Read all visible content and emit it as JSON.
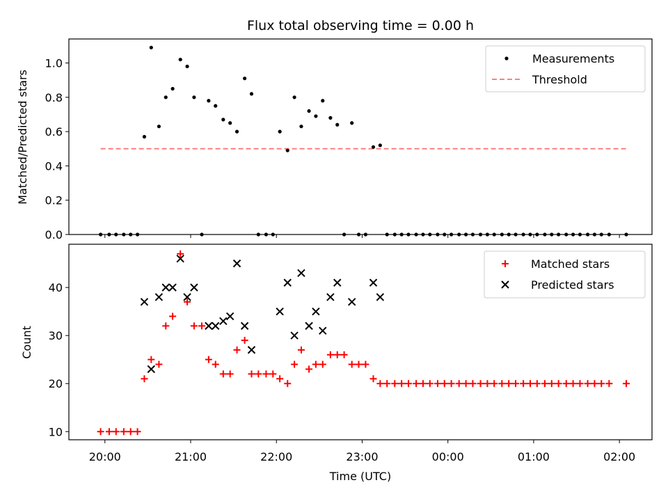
{
  "chart_data": [
    {
      "type": "scatter",
      "title": "Flux total observing time = 0.00 h",
      "xlabel": "",
      "ylabel": "Matched/Predicted stars",
      "ylim": [
        0,
        1.14
      ],
      "yticks": [
        0.0,
        0.2,
        0.4,
        0.6,
        0.8,
        1.0
      ],
      "ytick_labels": [
        "0.0",
        "0.2",
        "0.4",
        "0.6",
        "0.8",
        "1.0"
      ],
      "legend_position": "top-right",
      "series": [
        {
          "name": "Measurements",
          "marker": "dot",
          "color": "#000000",
          "points": [
            [
              19.95,
              0
            ],
            [
              20.05,
              0
            ],
            [
              20.13,
              0
            ],
            [
              20.22,
              0
            ],
            [
              20.3,
              0
            ],
            [
              20.38,
              0
            ],
            [
              20.46,
              0.57
            ],
            [
              20.54,
              1.09
            ],
            [
              20.63,
              0.63
            ],
            [
              20.71,
              0.8
            ],
            [
              20.79,
              0.85
            ],
            [
              20.88,
              1.02
            ],
            [
              20.96,
              0.98
            ],
            [
              21.04,
              0.8
            ],
            [
              21.13,
              0
            ],
            [
              21.21,
              0.78
            ],
            [
              21.29,
              0.75
            ],
            [
              21.38,
              0.67
            ],
            [
              21.46,
              0.65
            ],
            [
              21.54,
              0.6
            ],
            [
              21.63,
              0.91
            ],
            [
              21.71,
              0.82
            ],
            [
              21.79,
              0
            ],
            [
              21.88,
              0
            ],
            [
              21.96,
              0
            ],
            [
              22.04,
              0.6
            ],
            [
              22.13,
              0.49
            ],
            [
              22.21,
              0.8
            ],
            [
              22.29,
              0.63
            ],
            [
              22.38,
              0.72
            ],
            [
              22.46,
              0.69
            ],
            [
              22.54,
              0.78
            ],
            [
              22.63,
              0.68
            ],
            [
              22.71,
              0.64
            ],
            [
              22.79,
              0
            ],
            [
              22.88,
              0.65
            ],
            [
              22.96,
              0
            ],
            [
              23.04,
              0
            ],
            [
              23.13,
              0.51
            ],
            [
              23.21,
              0.52
            ],
            [
              23.29,
              0
            ],
            [
              23.38,
              0
            ],
            [
              23.46,
              0
            ],
            [
              23.54,
              0
            ],
            [
              23.63,
              0
            ],
            [
              23.71,
              0
            ],
            [
              23.79,
              0
            ],
            [
              23.88,
              0
            ],
            [
              23.96,
              0
            ],
            [
              24.04,
              0
            ],
            [
              24.13,
              0
            ],
            [
              24.21,
              0
            ],
            [
              24.29,
              0
            ],
            [
              24.38,
              0
            ],
            [
              24.46,
              0
            ],
            [
              24.54,
              0
            ],
            [
              24.63,
              0
            ],
            [
              24.71,
              0
            ],
            [
              24.79,
              0
            ],
            [
              24.88,
              0
            ],
            [
              24.96,
              0
            ],
            [
              25.04,
              0
            ],
            [
              25.13,
              0
            ],
            [
              25.21,
              0
            ],
            [
              25.29,
              0
            ],
            [
              25.38,
              0
            ],
            [
              25.46,
              0
            ],
            [
              25.54,
              0
            ],
            [
              25.63,
              0
            ],
            [
              25.71,
              0
            ],
            [
              25.79,
              0
            ],
            [
              25.88,
              0
            ],
            [
              26.08,
              0
            ]
          ]
        },
        {
          "name": "Threshold",
          "line": "dashed",
          "color": "#ff7f7f",
          "points": [
            [
              19.95,
              0.5
            ],
            [
              26.08,
              0.5
            ]
          ]
        }
      ]
    },
    {
      "type": "scatter",
      "title": "",
      "xlabel": "Time (UTC)",
      "ylabel": "Count",
      "ylim": [
        8.3,
        49
      ],
      "yticks": [
        10,
        20,
        30,
        40
      ],
      "ytick_labels": [
        "10",
        "20",
        "30",
        "40"
      ],
      "xlim": [
        19.58,
        26.38
      ],
      "xticks": [
        20,
        21,
        22,
        23,
        24,
        25,
        26
      ],
      "xtick_labels": [
        "20:00",
        "21:00",
        "22:00",
        "23:00",
        "00:00",
        "01:00",
        "02:00"
      ],
      "legend_position": "top-right",
      "series": [
        {
          "name": "Matched stars",
          "marker": "plus",
          "color": "#ff0000",
          "points": [
            [
              19.95,
              10
            ],
            [
              20.05,
              10
            ],
            [
              20.13,
              10
            ],
            [
              20.22,
              10
            ],
            [
              20.3,
              10
            ],
            [
              20.38,
              10
            ],
            [
              20.46,
              21
            ],
            [
              20.54,
              25
            ],
            [
              20.63,
              24
            ],
            [
              20.71,
              32
            ],
            [
              20.79,
              34
            ],
            [
              20.88,
              47
            ],
            [
              20.96,
              37
            ],
            [
              21.04,
              32
            ],
            [
              21.13,
              32
            ],
            [
              21.21,
              25
            ],
            [
              21.29,
              24
            ],
            [
              21.38,
              22
            ],
            [
              21.46,
              22
            ],
            [
              21.54,
              27
            ],
            [
              21.63,
              29
            ],
            [
              21.71,
              22
            ],
            [
              21.79,
              22
            ],
            [
              21.88,
              22
            ],
            [
              21.96,
              22
            ],
            [
              22.04,
              21
            ],
            [
              22.13,
              20
            ],
            [
              22.21,
              24
            ],
            [
              22.29,
              27
            ],
            [
              22.38,
              23
            ],
            [
              22.46,
              24
            ],
            [
              22.54,
              24
            ],
            [
              22.63,
              26
            ],
            [
              22.71,
              26
            ],
            [
              22.79,
              26
            ],
            [
              22.88,
              24
            ],
            [
              22.96,
              24
            ],
            [
              23.04,
              24
            ],
            [
              23.13,
              21
            ],
            [
              23.21,
              20
            ],
            [
              23.29,
              20
            ],
            [
              23.38,
              20
            ],
            [
              23.46,
              20
            ],
            [
              23.54,
              20
            ],
            [
              23.63,
              20
            ],
            [
              23.71,
              20
            ],
            [
              23.79,
              20
            ],
            [
              23.88,
              20
            ],
            [
              23.96,
              20
            ],
            [
              24.04,
              20
            ],
            [
              24.13,
              20
            ],
            [
              24.21,
              20
            ],
            [
              24.29,
              20
            ],
            [
              24.38,
              20
            ],
            [
              24.46,
              20
            ],
            [
              24.54,
              20
            ],
            [
              24.63,
              20
            ],
            [
              24.71,
              20
            ],
            [
              24.79,
              20
            ],
            [
              24.88,
              20
            ],
            [
              24.96,
              20
            ],
            [
              25.04,
              20
            ],
            [
              25.13,
              20
            ],
            [
              25.21,
              20
            ],
            [
              25.29,
              20
            ],
            [
              25.38,
              20
            ],
            [
              25.46,
              20
            ],
            [
              25.54,
              20
            ],
            [
              25.63,
              20
            ],
            [
              25.71,
              20
            ],
            [
              25.79,
              20
            ],
            [
              25.88,
              20
            ],
            [
              26.08,
              20
            ]
          ]
        },
        {
          "name": "Predicted stars",
          "marker": "x",
          "color": "#000000",
          "points": [
            [
              20.46,
              37
            ],
            [
              20.54,
              23
            ],
            [
              20.63,
              38
            ],
            [
              20.71,
              40
            ],
            [
              20.79,
              40
            ],
            [
              20.88,
              46
            ],
            [
              20.96,
              38
            ],
            [
              21.04,
              40
            ],
            [
              21.21,
              32
            ],
            [
              21.29,
              32
            ],
            [
              21.38,
              33
            ],
            [
              21.46,
              34
            ],
            [
              21.54,
              45
            ],
            [
              21.63,
              32
            ],
            [
              21.71,
              27
            ],
            [
              22.04,
              35
            ],
            [
              22.13,
              41
            ],
            [
              22.21,
              30
            ],
            [
              22.29,
              43
            ],
            [
              22.38,
              32
            ],
            [
              22.46,
              35
            ],
            [
              22.54,
              31
            ],
            [
              22.63,
              38
            ],
            [
              22.71,
              41
            ],
            [
              22.88,
              37
            ],
            [
              23.13,
              41
            ],
            [
              23.21,
              38
            ]
          ]
        }
      ]
    }
  ]
}
